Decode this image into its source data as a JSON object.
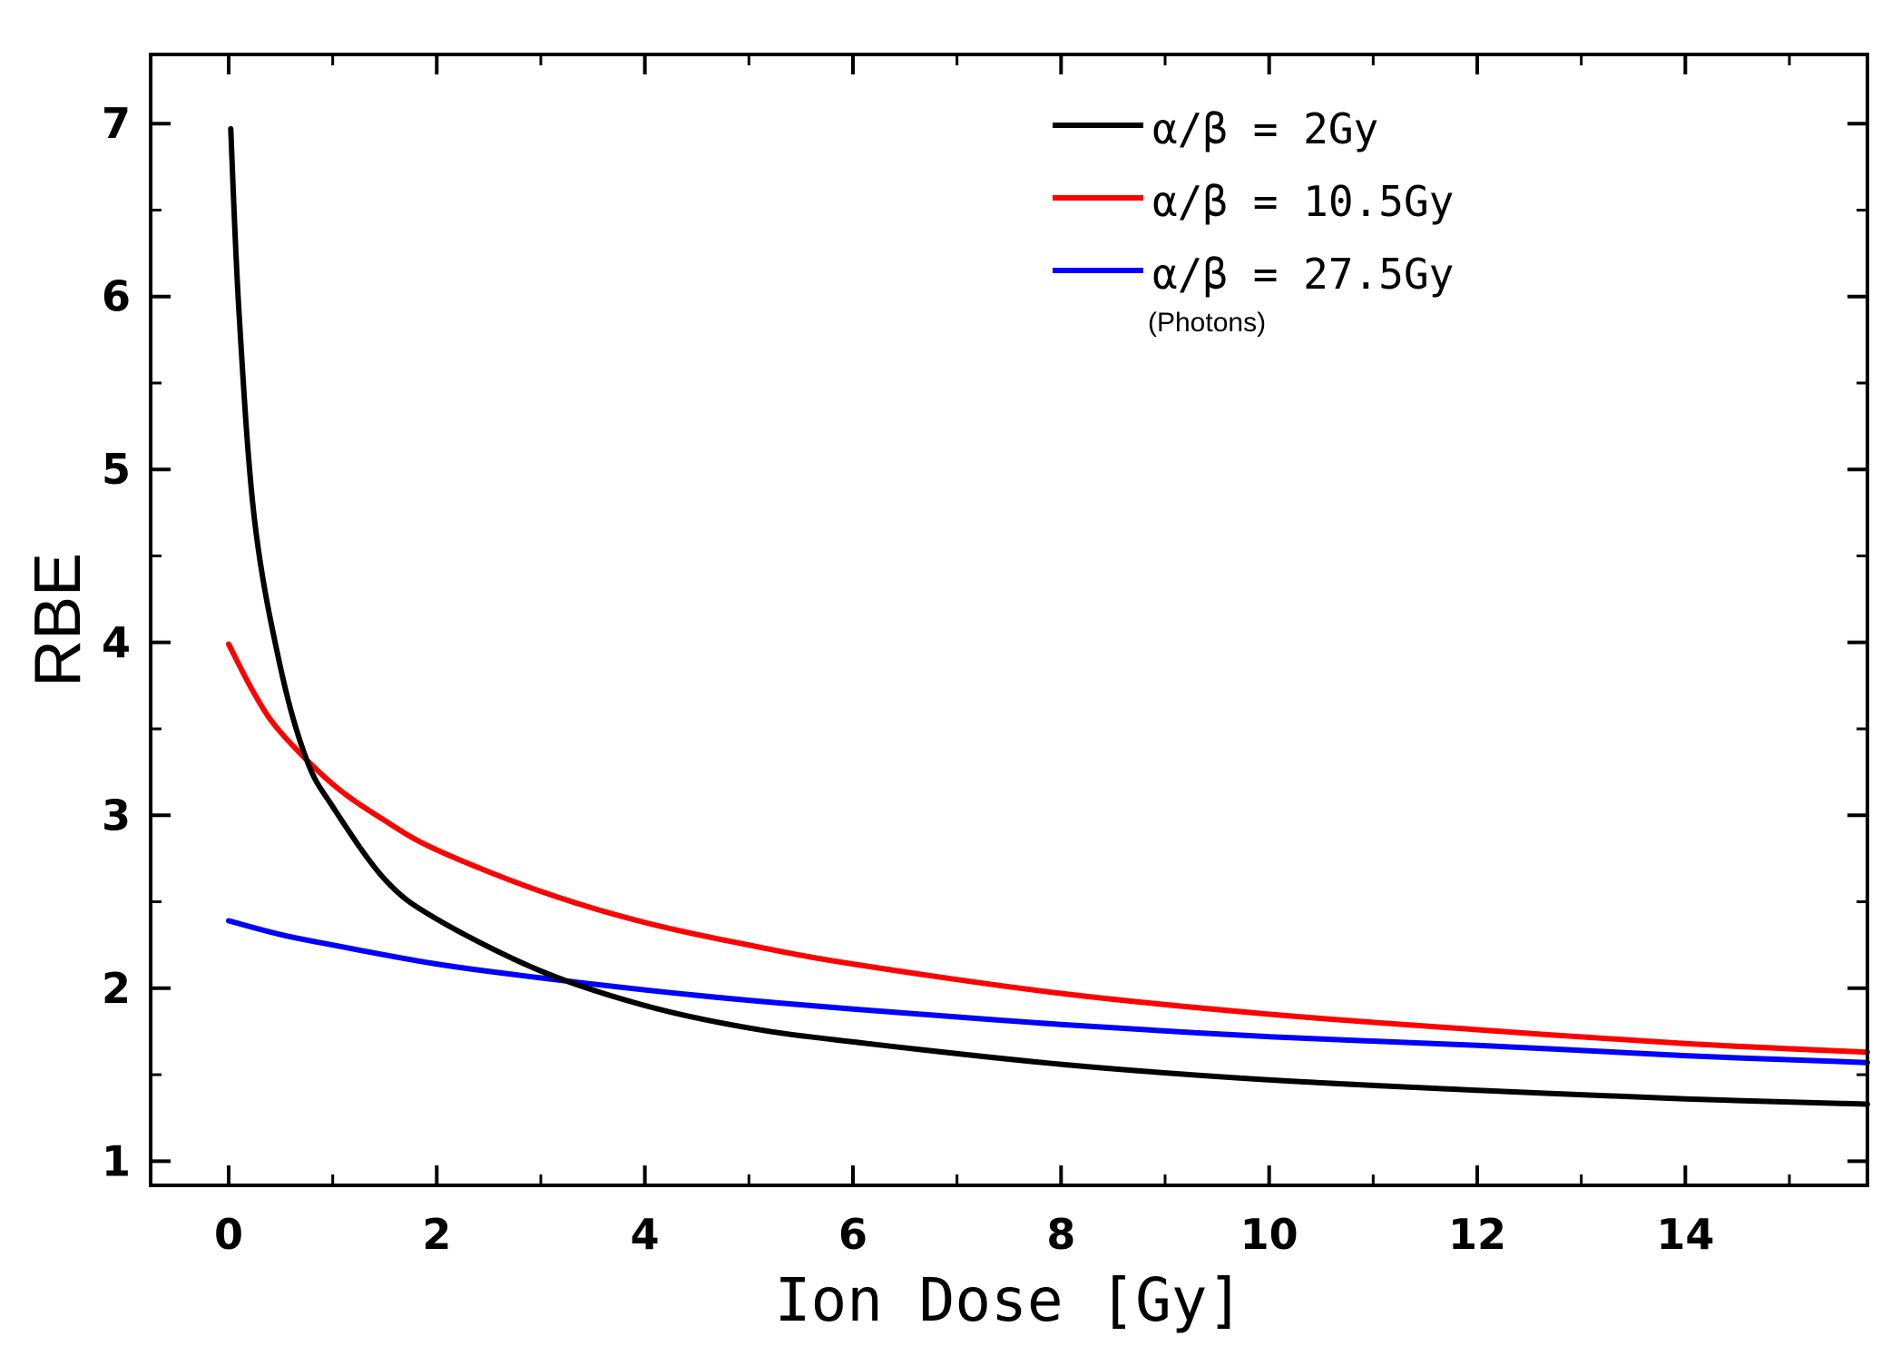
{
  "chart_data": {
    "type": "line",
    "title": "",
    "xlabel": "Ion Dose [Gy]",
    "ylabel": "RBE",
    "xlim": [
      -0.75,
      15.75
    ],
    "ylim": [
      0.86,
      7.4
    ],
    "xticks": [
      0,
      2,
      4,
      6,
      8,
      10,
      12,
      14
    ],
    "xtick_labels": [
      "0",
      "2",
      "4",
      "6",
      "8",
      "10",
      "12",
      "14"
    ],
    "yticks": [
      1,
      2,
      3,
      4,
      5,
      6,
      7
    ],
    "ytick_labels": [
      "1",
      "2",
      "3",
      "4",
      "5",
      "6",
      "7"
    ],
    "legend_position": "top-right",
    "grid": false,
    "series": [
      {
        "name": "α/β = 2Gy",
        "color": "#000000",
        "x": [
          0.02,
          0.1,
          0.25,
          0.5,
          0.75,
          1,
          1.5,
          2,
          3,
          4,
          5,
          6,
          8,
          10,
          12,
          14,
          15.75
        ],
        "y": [
          6.97,
          5.9,
          4.7,
          3.85,
          3.32,
          3.05,
          2.63,
          2.4,
          2.1,
          1.9,
          1.77,
          1.69,
          1.56,
          1.47,
          1.41,
          1.36,
          1.33
        ]
      },
      {
        "name": "α/β = 10.5Gy",
        "color": "#ff0000",
        "x": [
          0,
          0.25,
          0.5,
          1,
          1.5,
          2,
          3,
          4,
          5,
          6,
          8,
          10,
          12,
          14,
          15.75
        ],
        "y": [
          3.99,
          3.7,
          3.48,
          3.18,
          2.97,
          2.8,
          2.56,
          2.38,
          2.25,
          2.14,
          1.97,
          1.85,
          1.76,
          1.68,
          1.63
        ]
      },
      {
        "name": "α/β = 27.5Gy",
        "note": "(Photons)",
        "color": "#0000ff",
        "x": [
          0,
          0.5,
          1,
          2,
          3,
          4,
          5,
          6,
          8,
          10,
          12,
          14,
          15.75
        ],
        "y": [
          2.39,
          2.31,
          2.25,
          2.14,
          2.06,
          1.99,
          1.93,
          1.88,
          1.79,
          1.72,
          1.67,
          1.61,
          1.57
        ]
      }
    ]
  }
}
